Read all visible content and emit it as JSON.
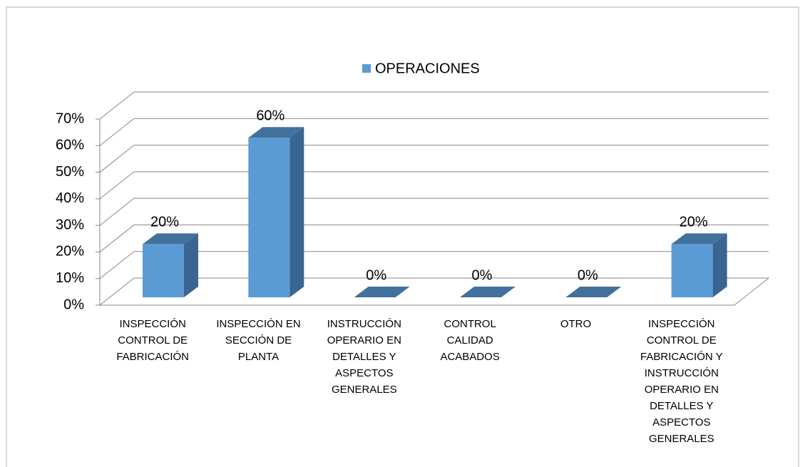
{
  "chart_data": {
    "type": "bar3d",
    "categories": [
      "INSPECCIÓN CONTROL DE FABRICACIÓN",
      "INSPECCIÓN EN SECCIÓN DE PLANTA",
      "INSTRUCCIÓN OPERARIO EN DETALLES Y ASPECTOS GENERALES",
      "CONTROL CALIDAD ACABADOS",
      "OTRO",
      "INSPECCIÓN CONTROL DE FABRICACIÓN Y INSTRUCCIÓN OPERARIO EN DETALLES Y ASPECTOS GENERALES"
    ],
    "series": [
      {
        "name": "OPERACIONES",
        "color": "#5b9bd5",
        "values": [
          20,
          60,
          0,
          0,
          0,
          20
        ],
        "value_labels": [
          "20%",
          "60%",
          "0%",
          "0%",
          "0%",
          "20%"
        ]
      }
    ],
    "ylim": [
      0,
      70
    ],
    "yticks": [
      {
        "value": 0,
        "label": "0%"
      },
      {
        "value": 10,
        "label": "10%"
      },
      {
        "value": 20,
        "label": "20%"
      },
      {
        "value": 30,
        "label": "30%"
      },
      {
        "value": 40,
        "label": "40%"
      },
      {
        "value": 50,
        "label": "50%"
      },
      {
        "value": 60,
        "label": "60%"
      },
      {
        "value": 70,
        "label": "70%"
      }
    ],
    "grid": true,
    "legend": "top"
  }
}
